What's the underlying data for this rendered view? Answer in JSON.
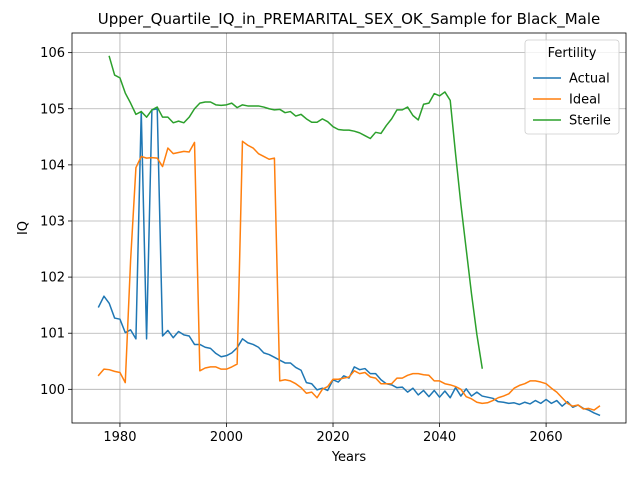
{
  "chart_data": {
    "type": "line",
    "title": "Upper_Quartile_IQ_in_PREMARITAL_SEX_OK_Sample for Black_Male",
    "xlabel": "Years",
    "ylabel": "IQ",
    "xlim": [
      1971,
      2075
    ],
    "ylim": [
      99.4,
      106.35
    ],
    "xticks": [
      1980,
      2000,
      2020,
      2040,
      2060
    ],
    "yticks": [
      100,
      101,
      102,
      103,
      104,
      105,
      106
    ],
    "grid": true,
    "legend": {
      "title": "Fertility",
      "placement": "top-right"
    },
    "colors": {
      "Actual": "#1f77b4",
      "Ideal": "#ff7f0e",
      "Sterile": "#2ca02c"
    },
    "series": [
      {
        "name": "Actual",
        "x": [
          1976,
          1977,
          1978,
          1979,
          1980,
          1981,
          1982,
          1983,
          1984,
          1985,
          1986,
          1987,
          1988,
          1989,
          1990,
          1991,
          1992,
          1993,
          1994,
          1995,
          1996,
          1997,
          1998,
          1999,
          2000,
          2001,
          2002,
          2003,
          2004,
          2005,
          2006,
          2007,
          2008,
          2009,
          2010,
          2011,
          2012,
          2013,
          2014,
          2015,
          2016,
          2017,
          2018,
          2019,
          2020,
          2021,
          2022,
          2023,
          2024,
          2025,
          2026,
          2027,
          2028,
          2029,
          2030,
          2031,
          2032,
          2033,
          2034,
          2035,
          2036,
          2037,
          2038,
          2039,
          2040,
          2041,
          2042,
          2043,
          2044,
          2045,
          2046,
          2047,
          2048,
          2049,
          2050,
          2051,
          2052,
          2053,
          2054,
          2055,
          2056,
          2057,
          2058,
          2059,
          2060,
          2061,
          2062,
          2063,
          2064,
          2065,
          2066,
          2067,
          2068,
          2069,
          2070
        ],
        "values": [
          101.47,
          101.66,
          101.53,
          101.27,
          101.25,
          101.01,
          101.06,
          100.9,
          104.95,
          100.9,
          104.98,
          105.0,
          100.95,
          101.05,
          100.92,
          101.03,
          100.97,
          100.95,
          100.8,
          100.8,
          100.75,
          100.73,
          100.64,
          100.58,
          100.6,
          100.65,
          100.74,
          100.9,
          100.83,
          100.8,
          100.75,
          100.65,
          100.62,
          100.57,
          100.52,
          100.47,
          100.47,
          100.39,
          100.34,
          100.12,
          100.1,
          99.99,
          100.02,
          99.98,
          100.17,
          100.13,
          100.24,
          100.2,
          100.4,
          100.35,
          100.37,
          100.28,
          100.28,
          100.17,
          100.1,
          100.08,
          100.03,
          100.04,
          99.95,
          100.02,
          99.9,
          99.98,
          99.87,
          99.98,
          99.86,
          99.97,
          99.85,
          100.03,
          99.88,
          100.01,
          99.88,
          99.95,
          99.88,
          99.86,
          99.84,
          99.78,
          99.77,
          99.75,
          99.76,
          99.73,
          99.77,
          99.74,
          99.8,
          99.75,
          99.82,
          99.75,
          99.8,
          99.7,
          99.78,
          99.68,
          99.72,
          99.66,
          99.63,
          99.58,
          99.54
        ]
      },
      {
        "name": "Ideal",
        "x": [
          1976,
          1977,
          1978,
          1979,
          1980,
          1981,
          1982,
          1983,
          1984,
          1985,
          1986,
          1987,
          1988,
          1989,
          1990,
          1991,
          1992,
          1993,
          1994,
          1995,
          1996,
          1997,
          1998,
          1999,
          2000,
          2001,
          2002,
          2003,
          2004,
          2005,
          2006,
          2007,
          2008,
          2009,
          2010,
          2011,
          2012,
          2013,
          2014,
          2015,
          2016,
          2017,
          2018,
          2019,
          2020,
          2021,
          2022,
          2023,
          2024,
          2025,
          2026,
          2027,
          2028,
          2029,
          2030,
          2031,
          2032,
          2033,
          2034,
          2035,
          2036,
          2037,
          2038,
          2039,
          2040,
          2041,
          2042,
          2043,
          2044,
          2045,
          2046,
          2047,
          2048,
          2049,
          2050,
          2051,
          2052,
          2053,
          2054,
          2055,
          2056,
          2057,
          2058,
          2059,
          2060,
          2061,
          2062,
          2063,
          2064,
          2065,
          2066,
          2067,
          2068,
          2069,
          2070
        ],
        "values": [
          100.25,
          100.36,
          100.35,
          100.32,
          100.3,
          100.12,
          102.3,
          103.95,
          104.15,
          104.12,
          104.13,
          104.12,
          103.97,
          104.3,
          104.2,
          104.22,
          104.24,
          104.23,
          104.4,
          100.33,
          100.38,
          100.4,
          100.4,
          100.36,
          100.36,
          100.4,
          100.45,
          104.42,
          104.35,
          104.3,
          104.2,
          104.15,
          104.1,
          104.12,
          100.15,
          100.17,
          100.15,
          100.1,
          100.03,
          99.93,
          99.95,
          99.85,
          100.0,
          100.05,
          100.18,
          100.18,
          100.2,
          100.22,
          100.33,
          100.28,
          100.3,
          100.22,
          100.2,
          100.1,
          100.1,
          100.1,
          100.2,
          100.2,
          100.25,
          100.28,
          100.28,
          100.26,
          100.25,
          100.15,
          100.15,
          100.1,
          100.08,
          100.05,
          100.0,
          99.87,
          99.83,
          99.77,
          99.75,
          99.76,
          99.8,
          99.85,
          99.88,
          99.92,
          100.02,
          100.07,
          100.1,
          100.15,
          100.15,
          100.13,
          100.1,
          100.02,
          99.95,
          99.85,
          99.75,
          99.7,
          99.72,
          99.65,
          99.66,
          99.63,
          99.7
        ]
      },
      {
        "name": "Sterile",
        "x": [
          1978,
          1979,
          1980,
          1981,
          1982,
          1983,
          1984,
          1985,
          1986,
          1987,
          1988,
          1989,
          1990,
          1991,
          1992,
          1993,
          1994,
          1995,
          1996,
          1997,
          1998,
          1999,
          2000,
          2001,
          2002,
          2003,
          2004,
          2005,
          2006,
          2007,
          2008,
          2009,
          2010,
          2011,
          2012,
          2013,
          2014,
          2015,
          2016,
          2017,
          2018,
          2019,
          2020,
          2021,
          2022,
          2023,
          2024,
          2025,
          2026,
          2027,
          2028,
          2029,
          2030,
          2031,
          2032,
          2033,
          2034,
          2035,
          2036,
          2037,
          2038,
          2039,
          2040,
          2041,
          2042,
          2043,
          2044,
          2045,
          2046,
          2047,
          2048
        ],
        "values": [
          105.93,
          105.6,
          105.55,
          105.28,
          105.1,
          104.9,
          104.95,
          104.85,
          104.98,
          105.03,
          104.85,
          104.85,
          104.75,
          104.78,
          104.75,
          104.85,
          105.0,
          105.1,
          105.12,
          105.12,
          105.07,
          105.06,
          105.07,
          105.1,
          105.02,
          105.07,
          105.05,
          105.05,
          105.05,
          105.03,
          105.0,
          104.98,
          104.99,
          104.93,
          104.95,
          104.87,
          104.9,
          104.82,
          104.76,
          104.76,
          104.82,
          104.77,
          104.68,
          104.63,
          104.62,
          104.62,
          104.6,
          104.57,
          104.52,
          104.47,
          104.58,
          104.56,
          104.7,
          104.82,
          104.98,
          104.98,
          105.03,
          104.88,
          104.8,
          105.08,
          105.1,
          105.27,
          105.23,
          105.3,
          105.15,
          104.2,
          103.3,
          102.5,
          101.7,
          100.98,
          100.38
        ]
      }
    ]
  }
}
